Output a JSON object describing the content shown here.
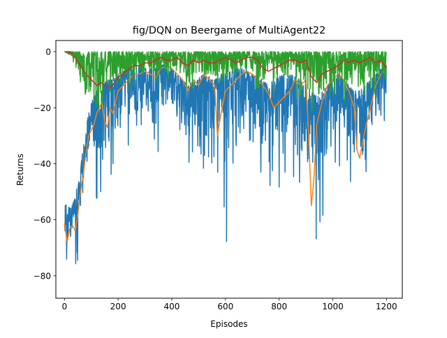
{
  "chart_data": {
    "type": "line",
    "title": "fig/DQN on Beergame of MultiAgent22",
    "xlabel": "Episodes",
    "ylabel": "Returns",
    "xlim": [
      -32,
      1259
    ],
    "ylim": [
      -88,
      4
    ],
    "xticks": [
      0,
      200,
      400,
      600,
      800,
      1000,
      1200
    ],
    "yticks": [
      0,
      -20,
      -40,
      -60,
      -80
    ],
    "grid": false,
    "legend": "none",
    "series_style": [
      {
        "color": "#1f77b4",
        "mode": "raw"
      },
      {
        "color": "#ff7f0e",
        "mode": "smooth"
      },
      {
        "color": "#2ca02c",
        "mode": "raw"
      },
      {
        "color": "#d62728",
        "mode": "smooth"
      }
    ],
    "series": [
      {
        "envelope_x": [
          0,
          10,
          25,
          40,
          50,
          60,
          75,
          90,
          100,
          120,
          140,
          160,
          180,
          200,
          220,
          240,
          260,
          280,
          300,
          320,
          340,
          360,
          380,
          400,
          420,
          440,
          460,
          480,
          500,
          520,
          540,
          560,
          580,
          600,
          620,
          640,
          660,
          680,
          700,
          720,
          740,
          760,
          780,
          800,
          820,
          840,
          860,
          880,
          900,
          920,
          940,
          960,
          980,
          1000,
          1020,
          1040,
          1060,
          1080,
          1100,
          1120,
          1140,
          1160,
          1180,
          1200
        ],
        "low": [
          -80,
          -83,
          -72,
          -74,
          -83,
          -66,
          -55,
          -44,
          -40,
          -55,
          -50,
          -52,
          -44,
          -40,
          -40,
          -38,
          -35,
          -30,
          -38,
          -35,
          -42,
          -28,
          -30,
          -26,
          -35,
          -50,
          -40,
          -46,
          -52,
          -60,
          -45,
          -40,
          -46,
          -75,
          -44,
          -42,
          -40,
          -45,
          -50,
          -46,
          -50,
          -65,
          -50,
          -52,
          -45,
          -40,
          -62,
          -55,
          -60,
          -58,
          -72,
          -63,
          -45,
          -40,
          -42,
          -48,
          -50,
          -55,
          -48,
          -60,
          -35,
          -38,
          -32,
          -20
        ],
        "high": [
          -54,
          -55,
          -56,
          -52,
          -46,
          -42,
          -30,
          -22,
          -18,
          -14,
          -12,
          -10,
          -10,
          -8,
          -7,
          -6,
          -6,
          -5,
          -6,
          -6,
          -6,
          -5,
          -4,
          -6,
          -8,
          -10,
          -12,
          -10,
          -9,
          -8,
          -9,
          -10,
          -8,
          -8,
          -7,
          -6,
          -6,
          -7,
          -8,
          -9,
          -10,
          -12,
          -10,
          -9,
          -8,
          -8,
          -9,
          -10,
          -12,
          -14,
          -16,
          -14,
          -12,
          -10,
          -8,
          -10,
          -12,
          -14,
          -14,
          -12,
          -10,
          -8,
          -6,
          -4
        ]
      },
      {
        "x": [
          0,
          10,
          20,
          30,
          40,
          50,
          60,
          70,
          80,
          90,
          100,
          110,
          120,
          130,
          140,
          150,
          160,
          170,
          180,
          190,
          200,
          220,
          240,
          260,
          280,
          300,
          320,
          340,
          360,
          380,
          400,
          420,
          440,
          460,
          480,
          500,
          520,
          540,
          560,
          570,
          580,
          600,
          620,
          640,
          660,
          680,
          700,
          720,
          740,
          760,
          780,
          800,
          820,
          840,
          860,
          880,
          900,
          910,
          920,
          930,
          940,
          960,
          980,
          1000,
          1020,
          1040,
          1060,
          1080,
          1090,
          1100,
          1120,
          1140,
          1160,
          1180,
          1200
        ],
        "values": [
          -61,
          -68,
          -63,
          -62,
          -64,
          -58,
          -50,
          -44,
          -36,
          -30,
          -28,
          -26,
          -22,
          -20,
          -18,
          -25,
          -27,
          -20,
          -22,
          -18,
          -14,
          -12,
          -10,
          -8,
          -8,
          -7,
          -8,
          -9,
          -6,
          -5,
          -6,
          -8,
          -10,
          -14,
          -10,
          -12,
          -8,
          -10,
          -12,
          -30,
          -24,
          -14,
          -12,
          -10,
          -8,
          -7,
          -8,
          -10,
          -12,
          -15,
          -20,
          -18,
          -16,
          -14,
          -10,
          -12,
          -10,
          -30,
          -55,
          -45,
          -26,
          -18,
          -12,
          -10,
          -8,
          -10,
          -14,
          -20,
          -35,
          -38,
          -28,
          -20,
          -12,
          -8,
          -6
        ]
      },
      {
        "envelope_x": [
          0,
          20,
          40,
          60,
          80,
          100,
          120,
          140,
          160,
          180,
          200,
          250,
          300,
          350,
          400,
          450,
          500,
          550,
          600,
          650,
          700,
          750,
          800,
          850,
          900,
          950,
          1000,
          1050,
          1100,
          1150,
          1200
        ],
        "low": [
          0,
          -2,
          -5,
          -22,
          -26,
          -24,
          -22,
          -20,
          -18,
          -18,
          -15,
          -14,
          -12,
          -12,
          -10,
          -16,
          -14,
          -16,
          -14,
          -12,
          -12,
          -18,
          -16,
          -15,
          -22,
          -26,
          -18,
          -20,
          -22,
          -18,
          -16
        ],
        "high": [
          0,
          0,
          0,
          0,
          0,
          0,
          0,
          0,
          0,
          0,
          0,
          0,
          0,
          0,
          0,
          0,
          0,
          0,
          0,
          0,
          0,
          0,
          0,
          0,
          0,
          0,
          0,
          0,
          0,
          0,
          0
        ]
      },
      {
        "x": [
          0,
          20,
          40,
          60,
          80,
          100,
          120,
          140,
          160,
          180,
          200,
          220,
          240,
          260,
          280,
          300,
          320,
          340,
          360,
          380,
          400,
          420,
          440,
          460,
          480,
          500,
          520,
          540,
          560,
          580,
          600,
          620,
          640,
          660,
          680,
          700,
          720,
          740,
          760,
          780,
          800,
          820,
          840,
          860,
          880,
          900,
          920,
          940,
          960,
          980,
          1000,
          1020,
          1040,
          1060,
          1080,
          1100,
          1120,
          1140,
          1160,
          1180,
          1200
        ],
        "values": [
          0,
          0,
          -2,
          -5,
          -8,
          -10,
          -12,
          -11,
          -13,
          -12,
          -9,
          -8,
          -6,
          -5,
          -5,
          -4,
          -4,
          -3,
          -2,
          -3,
          -3,
          -2,
          -4,
          -5,
          -3,
          -4,
          -3,
          -4,
          -4,
          -3,
          -2,
          -3,
          -4,
          -3,
          -2,
          -2,
          -3,
          -6,
          -7,
          -6,
          -5,
          -4,
          -3,
          -3,
          -4,
          -3,
          -9,
          -11,
          -8,
          -7,
          -6,
          -5,
          -3,
          -4,
          -3,
          -4,
          -3,
          -2,
          -4,
          -3,
          -6
        ]
      }
    ]
  }
}
